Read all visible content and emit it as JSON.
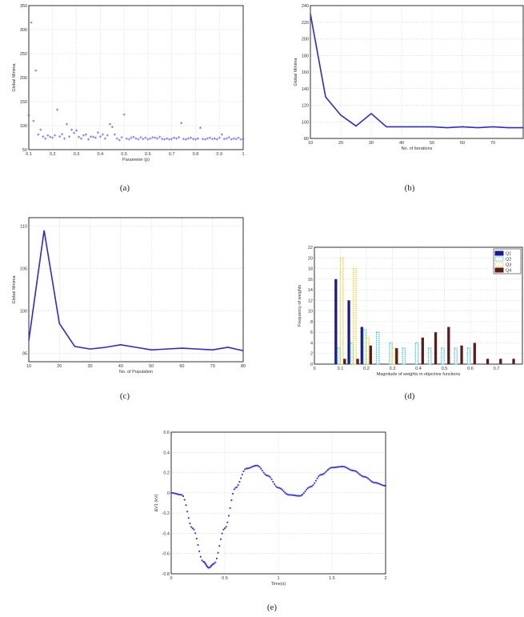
{
  "panels": [
    {
      "id": "a",
      "caption": "(a)",
      "chart_data": {
        "type": "scatter",
        "title": "",
        "xlabel": "Parameter (p)",
        "ylabel": "Global Minima",
        "xlim": [
          0.1,
          1
        ],
        "ylim": [
          50,
          350
        ],
        "xticks": [
          0.1,
          0.2,
          0.3,
          0.4,
          0.5,
          0.6,
          0.7,
          0.8,
          0.9,
          1
        ],
        "xtick_labels": [
          "0.1",
          "0.2",
          "0.3",
          "0.4",
          "0.5",
          "0.6",
          "0.7",
          "0.8",
          "0.9",
          "1"
        ],
        "yticks": [
          50,
          100,
          150,
          200,
          250,
          300,
          350
        ],
        "ytick_labels": [
          "50",
          "100",
          "150",
          "200",
          "250",
          "300",
          "350"
        ],
        "grid": true,
        "marker": "asterisk",
        "color": "#3a3af0",
        "x": [
          0.1,
          0.11,
          0.12,
          0.13,
          0.14,
          0.15,
          0.16,
          0.17,
          0.18,
          0.19,
          0.2,
          0.21,
          0.22,
          0.23,
          0.24,
          0.25,
          0.26,
          0.27,
          0.28,
          0.29,
          0.3,
          0.31,
          0.32,
          0.33,
          0.34,
          0.35,
          0.36,
          0.37,
          0.38,
          0.39,
          0.4,
          0.41,
          0.42,
          0.43,
          0.44,
          0.45,
          0.46,
          0.47,
          0.48,
          0.49,
          0.5,
          0.51,
          0.52,
          0.53,
          0.54,
          0.55,
          0.56,
          0.57,
          0.58,
          0.59,
          0.6,
          0.61,
          0.62,
          0.63,
          0.64,
          0.65,
          0.66,
          0.67,
          0.68,
          0.69,
          0.7,
          0.71,
          0.72,
          0.73,
          0.74,
          0.75,
          0.76,
          0.77,
          0.78,
          0.79,
          0.8,
          0.81,
          0.82,
          0.83,
          0.84,
          0.85,
          0.86,
          0.87,
          0.88,
          0.89,
          0.9,
          0.91,
          0.92,
          0.93,
          0.94,
          0.95,
          0.96,
          0.97,
          0.98,
          0.99,
          1
        ],
        "y": [
          120,
          313,
          108,
          213,
          80,
          90,
          76,
          72,
          78,
          75,
          73,
          78,
          132,
          76,
          81,
          72,
          102,
          76,
          90,
          83,
          88,
          75,
          72,
          78,
          80,
          70,
          76,
          75,
          73,
          84,
          76,
          80,
          72,
          78,
          102,
          96,
          80,
          72,
          68,
          74,
          122,
          72,
          70,
          73,
          75,
          72,
          70,
          74,
          71,
          73,
          70,
          72,
          74,
          73,
          72,
          75,
          71,
          70,
          72,
          70,
          71,
          73,
          72,
          74,
          104,
          71,
          70,
          72,
          73,
          71,
          70,
          72,
          94,
          71,
          70,
          72,
          73,
          71,
          72,
          70,
          73,
          80,
          71,
          72,
          74,
          70,
          72,
          71,
          73,
          70,
          71
        ]
      }
    },
    {
      "id": "b",
      "caption": "(b)",
      "chart_data": {
        "type": "line",
        "title": "",
        "xlabel": "No. of Iterations",
        "ylabel": "Global Minima",
        "xlim": [
          10,
          80
        ],
        "ylim": [
          80,
          240
        ],
        "xticks": [
          10,
          20,
          30,
          40,
          50,
          60,
          70
        ],
        "xtick_labels": [
          "10",
          "20",
          "30",
          "40",
          "50",
          "60",
          "70"
        ],
        "yticks": [
          80,
          100,
          120,
          140,
          160,
          180,
          200,
          220,
          240
        ],
        "ytick_labels": [
          "80",
          "100",
          "120",
          "140",
          "160",
          "180",
          "200",
          "220",
          "240"
        ],
        "grid": true,
        "color": "#2a2ad6",
        "x": [
          10,
          15,
          20,
          25,
          30,
          35,
          40,
          45,
          50,
          55,
          60,
          65,
          70,
          75,
          80
        ],
        "y": [
          230,
          130,
          108,
          95,
          110,
          94,
          94,
          94,
          94,
          93,
          94,
          93,
          94,
          93,
          93
        ]
      }
    },
    {
      "id": "c",
      "caption": "(c)",
      "chart_data": {
        "type": "line",
        "title": "",
        "xlabel": "No. of Population",
        "ylabel": "Global Minima",
        "xlim": [
          10,
          80
        ],
        "ylim": [
          94,
          111
        ],
        "xticks": [
          10,
          20,
          30,
          40,
          50,
          60,
          70,
          80
        ],
        "xtick_labels": [
          "10",
          "20",
          "30",
          "40",
          "50",
          "60",
          "70",
          "80"
        ],
        "yticks": [
          95,
          100,
          105,
          110
        ],
        "ytick_labels": [
          "95",
          "100",
          "105",
          "110"
        ],
        "grid": true,
        "color": "#2a2ad6",
        "x": [
          10,
          15,
          20,
          25,
          30,
          35,
          40,
          45,
          50,
          55,
          60,
          65,
          70,
          75,
          80
        ],
        "y": [
          96.5,
          109.5,
          98.5,
          95.8,
          95.5,
          95.7,
          96,
          95.7,
          95.4,
          95.5,
          95.6,
          95.5,
          95.4,
          95.7,
          95.3
        ]
      }
    },
    {
      "id": "d",
      "caption": "(d)",
      "chart_data": {
        "type": "bar",
        "title": "",
        "xlabel": "Magnitude of weights in objective functions",
        "ylabel": "Frequency of weights",
        "xlim": [
          0,
          0.8
        ],
        "ylim": [
          0,
          22
        ],
        "xticks": [
          0,
          0.1,
          0.2,
          0.3,
          0.4,
          0.5,
          0.6,
          0.7
        ],
        "xtick_labels": [
          "0",
          "0.1",
          "0.2",
          "0.3",
          "0.4",
          "0.5",
          "0.6",
          "0.7"
        ],
        "yticks": [
          0,
          2,
          4,
          6,
          8,
          10,
          12,
          14,
          16,
          18,
          20,
          22
        ],
        "ytick_labels": [
          "0",
          "2",
          "4",
          "6",
          "8",
          "10",
          "12",
          "14",
          "16",
          "18",
          "20",
          "22"
        ],
        "grid": true,
        "legend_position": "top-right",
        "categories": [
          0.1,
          0.15,
          0.2,
          0.25,
          0.3,
          0.35,
          0.4,
          0.45,
          0.5,
          0.55,
          0.6,
          0.65,
          0.7,
          0.75
        ],
        "series": [
          {
            "name": "Q1",
            "color": "#1a1a8c",
            "pattern": "solid",
            "values": [
              16,
              12,
              7,
              0,
              0,
              0,
              0,
              0,
              0,
              0,
              0,
              0,
              0,
              0
            ]
          },
          {
            "name": "Q2",
            "color": "#3fc9d6",
            "pattern": "dotted",
            "values": [
              3,
              4,
              6.5,
              6,
              4,
              3,
              4,
              3,
              3,
              3,
              3,
              0,
              0,
              0
            ]
          },
          {
            "name": "Q3",
            "color": "#f0d020",
            "pattern": "dotted",
            "values": [
              20,
              18,
              5,
              0,
              3,
              0,
              0,
              0,
              0,
              0,
              0,
              0,
              0,
              0
            ]
          },
          {
            "name": "Q4",
            "color": "#5c1a1a",
            "pattern": "solid",
            "values": [
              1,
              1,
              3.5,
              0,
              3,
              0,
              5,
              6,
              7,
              3.5,
              4,
              1,
              1,
              1
            ]
          }
        ]
      }
    },
    {
      "id": "e",
      "caption": "(e)",
      "chart_data": {
        "type": "scatter",
        "title": "",
        "xlabel": "Time(s)",
        "ylabel": "ΔV1 (kV)",
        "xlim": [
          0,
          2
        ],
        "ylim": [
          -0.8,
          0.6
        ],
        "xticks": [
          0,
          0.5,
          1,
          1.5,
          2
        ],
        "xtick_labels": [
          "0",
          "0.5",
          "1",
          "1.5",
          "2"
        ],
        "yticks": [
          -0.8,
          -0.6,
          -0.4,
          -0.2,
          0,
          0.2,
          0.4,
          0.6
        ],
        "ytick_labels": [
          "-0.8",
          "-0.6",
          "-0.4",
          "-0.2",
          "0",
          "0.2",
          "0.4",
          "0.6"
        ],
        "grid": true,
        "marker": "dot",
        "color": "#3a3af0",
        "x": [
          0,
          0.1,
          0.2,
          0.3,
          0.35,
          0.4,
          0.5,
          0.6,
          0.7,
          0.8,
          0.9,
          1.0,
          1.1,
          1.2,
          1.3,
          1.4,
          1.5,
          1.6,
          1.7,
          1.8,
          1.9,
          2.0
        ],
        "y": [
          0,
          -0.02,
          -0.35,
          -0.68,
          -0.74,
          -0.7,
          -0.35,
          0.05,
          0.24,
          0.27,
          0.17,
          0.05,
          -0.02,
          -0.03,
          0.06,
          0.18,
          0.25,
          0.26,
          0.22,
          0.16,
          0.1,
          0.07
        ]
      }
    }
  ]
}
